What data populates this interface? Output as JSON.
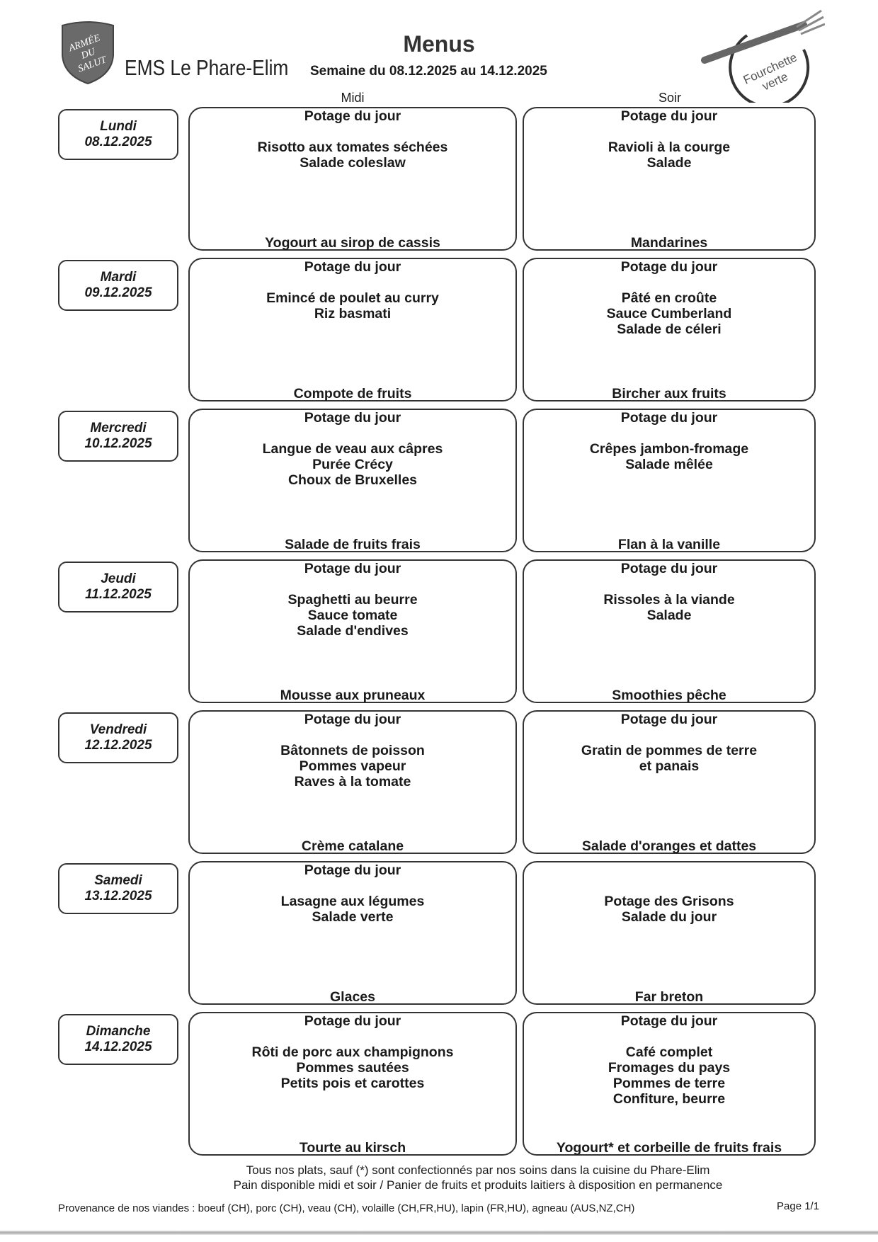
{
  "header": {
    "logo_text": "ARMÉE DU SALUT",
    "organization": "EMS Le Phare-Elim",
    "title": "Menus",
    "week": "Semaine du 08.12.2025 au 14.12.2025",
    "badge_logo_text": "Fourchette verte"
  },
  "columns": {
    "midi": "Midi",
    "soir": "Soir"
  },
  "days": [
    {
      "name": "Lundi",
      "date": "08.12.2025",
      "midi": {
        "top": "Potage du jour",
        "main": [
          "Risotto aux tomates séchées",
          "Salade coleslaw"
        ],
        "dessert": "Yogourt au sirop de cassis"
      },
      "soir": {
        "top": "Potage du jour",
        "main": [
          "Ravioli à la courge",
          "Salade"
        ],
        "dessert": "Mandarines"
      }
    },
    {
      "name": "Mardi",
      "date": "09.12.2025",
      "midi": {
        "top": "Potage du jour",
        "main": [
          "Emincé de poulet au curry",
          "Riz basmati"
        ],
        "dessert": "Compote de fruits"
      },
      "soir": {
        "top": "Potage du jour",
        "main": [
          "Pâté en croûte",
          "Sauce Cumberland",
          "Salade de céleri"
        ],
        "dessert": "Bircher aux fruits"
      }
    },
    {
      "name": "Mercredi",
      "date": "10.12.2025",
      "midi": {
        "top": "Potage du jour",
        "main": [
          "Langue de veau aux câpres",
          "Purée Crécy",
          "Choux de Bruxelles"
        ],
        "dessert": "Salade de fruits frais"
      },
      "soir": {
        "top": "Potage du jour",
        "main": [
          "Crêpes jambon-fromage",
          "Salade mêlée"
        ],
        "dessert": "Flan à la vanille"
      }
    },
    {
      "name": "Jeudi",
      "date": "11.12.2025",
      "midi": {
        "top": "Potage du jour",
        "main": [
          "Spaghetti au beurre",
          "Sauce tomate",
          "Salade d'endives"
        ],
        "dessert": "Mousse aux pruneaux"
      },
      "soir": {
        "top": "Potage du jour",
        "main": [
          "Rissoles à la viande",
          "Salade"
        ],
        "dessert": "Smoothies pêche"
      }
    },
    {
      "name": "Vendredi",
      "date": "12.12.2025",
      "midi": {
        "top": "Potage du jour",
        "main": [
          "Bâtonnets de poisson",
          "Pommes vapeur",
          "Raves à la tomate"
        ],
        "dessert": "Crème catalane"
      },
      "soir": {
        "top": "Potage du jour",
        "main": [
          "Gratin de pommes de terre",
          "et panais"
        ],
        "dessert": "Salade d'oranges et dattes"
      }
    },
    {
      "name": "Samedi",
      "date": "13.12.2025",
      "midi": {
        "top": "Potage du jour",
        "main": [
          "Lasagne aux légumes",
          "Salade verte"
        ],
        "dessert": "Glaces"
      },
      "soir": {
        "top": "",
        "main": [
          "Potage des Grisons",
          "Salade du jour"
        ],
        "dessert": "Far breton"
      }
    },
    {
      "name": "Dimanche",
      "date": "14.12.2025",
      "midi": {
        "top": "Potage du jour",
        "main": [
          "Rôti de porc aux champignons",
          "Pommes sautées",
          "Petits pois et carottes"
        ],
        "dessert": "Tourte au kirsch"
      },
      "soir": {
        "top": "Potage du jour",
        "main": [
          "Café complet",
          "Fromages du pays",
          "Pommes de terre",
          "Confiture, beurre"
        ],
        "dessert": "Yogourt* et corbeille de fruits frais"
      }
    }
  ],
  "footer": {
    "note1": "Tous nos plats, sauf (*) sont confectionnés par nos soins dans la cuisine du Phare-Elim",
    "note2": "Pain disponible midi et soir / Panier de fruits et produits laitiers à disposition en permanence",
    "provenance": "Provenance de nos viandes : boeuf (CH), porc (CH), veau (CH), volaille (CH,FR,HU), lapin (FR,HU), agneau (AUS,NZ,CH)",
    "page": "Page 1/1"
  }
}
